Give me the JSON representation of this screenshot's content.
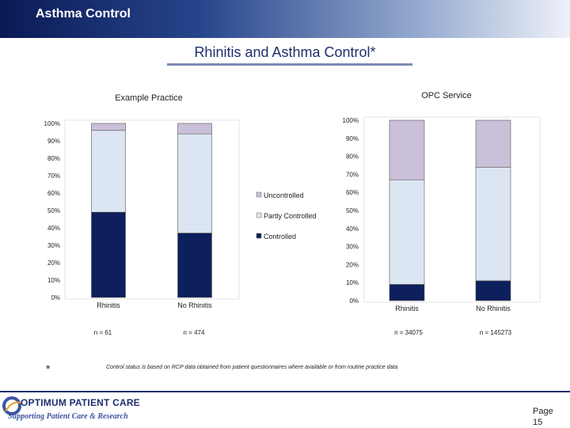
{
  "header": {
    "title": "Asthma Control"
  },
  "slide": {
    "title": "Rhinitis and Asthma Control*"
  },
  "chart_data": [
    {
      "type": "bar",
      "stacked": true,
      "title": "Example Practice",
      "categories": [
        "Rhinitis",
        "No Rhinitis"
      ],
      "yticks": [
        "0%",
        "10%",
        "20%",
        "30%",
        "40%",
        "50%",
        "60%",
        "70%",
        "80%",
        "90%",
        "100%"
      ],
      "ylim": [
        0,
        100
      ],
      "series": [
        {
          "name": "Controlled",
          "values": [
            49,
            37
          ]
        },
        {
          "name": "Partly Controlled",
          "values": [
            47,
            57
          ]
        },
        {
          "name": "Uncontrolled",
          "values": [
            4,
            6
          ]
        }
      ],
      "n_labels": [
        "n =    61",
        "n =   474"
      ],
      "legend": "right"
    },
    {
      "type": "bar",
      "stacked": true,
      "title": "OPC Service",
      "categories": [
        "Rhinitis",
        "No Rhinitis"
      ],
      "yticks": [
        "0%",
        "10%",
        "20%",
        "30%",
        "40%",
        "50%",
        "60%",
        "70%",
        "80%",
        "90%",
        "100%"
      ],
      "ylim": [
        0,
        100
      ],
      "series": [
        {
          "name": "Controlled",
          "values": [
            9,
            11
          ]
        },
        {
          "name": "Partly Controlled",
          "values": [
            58,
            63
          ]
        },
        {
          "name": "Uncontrolled",
          "values": [
            33,
            26
          ]
        }
      ],
      "n_labels": [
        "n = 34075",
        "n =  145273"
      ]
    }
  ],
  "colors": {
    "Controlled": "#0d1f5c",
    "Partly Controlled": "#dce6f2",
    "Uncontrolled": "#cbc0da"
  },
  "footnote": {
    "marker": "*",
    "text": "Control status is based on RCP data obtained from patient questionnaires where available or from routine practice data"
  },
  "logo": {
    "main": "OPTIMUM PATIENT CARE",
    "sub": "Supporting Patient Care & Research"
  },
  "page": {
    "label": "Page",
    "number": "15"
  }
}
